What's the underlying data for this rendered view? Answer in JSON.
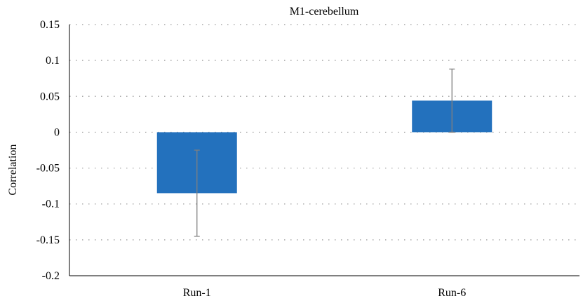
{
  "chart_data": {
    "type": "bar",
    "title": "M1-cerebellum",
    "xlabel": "",
    "ylabel": "Correlation",
    "categories": [
      "Run-1",
      "Run-6"
    ],
    "series": [
      {
        "values": [
          -0.085,
          0.044
        ],
        "error_low": [
          -0.145,
          0.0
        ],
        "error_high": [
          -0.025,
          0.088
        ]
      }
    ],
    "ylim": [
      -0.2,
      0.15
    ],
    "yticks": [
      "0.15",
      "0.1",
      "0.05",
      "0",
      "-0.05",
      "-0.1",
      "-0.15",
      "-0.2"
    ],
    "ytick_values": [
      0.15,
      0.1,
      0.05,
      0,
      -0.05,
      -0.1,
      -0.15,
      -0.2
    ],
    "grid": true,
    "grid_style": "dotted",
    "legend": "none",
    "colors": {
      "bar": "#2371bd",
      "error": "#808080",
      "axis": "#000000",
      "grid": "#999999"
    }
  }
}
